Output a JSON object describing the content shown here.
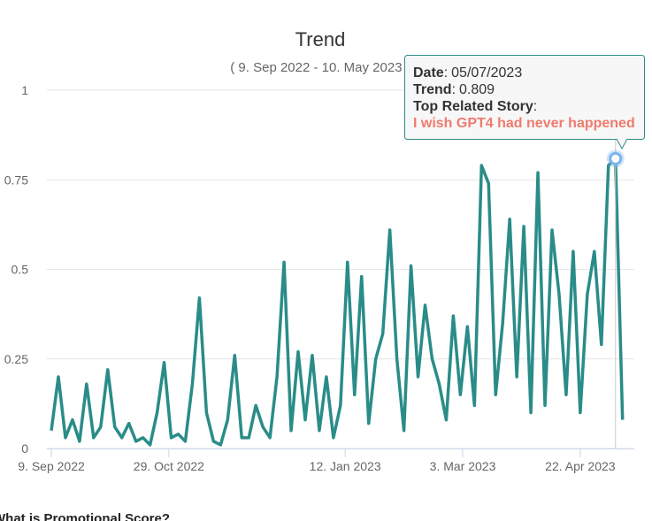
{
  "chart_data": {
    "type": "line",
    "title": "Trend",
    "subtitle": "( 9. Sep 2022 - 10. May 2023 )",
    "x": [
      "2022-09-09",
      "2022-09-12",
      "2022-09-15",
      "2022-09-18",
      "2022-09-21",
      "2022-09-24",
      "2022-09-27",
      "2022-09-30",
      "2022-10-03",
      "2022-10-06",
      "2022-10-09",
      "2022-10-12",
      "2022-10-15",
      "2022-10-18",
      "2022-10-21",
      "2022-10-24",
      "2022-10-27",
      "2022-10-30",
      "2022-11-02",
      "2022-11-05",
      "2022-11-08",
      "2022-11-11",
      "2022-11-14",
      "2022-11-17",
      "2022-11-20",
      "2022-11-23",
      "2022-11-26",
      "2022-11-29",
      "2022-12-02",
      "2022-12-05",
      "2022-12-08",
      "2022-12-11",
      "2022-12-14",
      "2022-12-17",
      "2022-12-20",
      "2022-12-23",
      "2022-12-26",
      "2022-12-29",
      "2023-01-01",
      "2023-01-04",
      "2023-01-07",
      "2023-01-10",
      "2023-01-13",
      "2023-01-16",
      "2023-01-19",
      "2023-01-22",
      "2023-01-25",
      "2023-01-28",
      "2023-01-31",
      "2023-02-03",
      "2023-02-06",
      "2023-02-09",
      "2023-02-12",
      "2023-02-15",
      "2023-02-18",
      "2023-02-21",
      "2023-02-24",
      "2023-02-27",
      "2023-03-02",
      "2023-03-05",
      "2023-03-08",
      "2023-03-11",
      "2023-03-14",
      "2023-03-17",
      "2023-03-20",
      "2023-03-23",
      "2023-03-26",
      "2023-03-29",
      "2023-04-01",
      "2023-04-04",
      "2023-04-07",
      "2023-04-10",
      "2023-04-13",
      "2023-04-16",
      "2023-04-19",
      "2023-04-22",
      "2023-04-25",
      "2023-04-28",
      "2023-05-01",
      "2023-05-04",
      "2023-05-07",
      "2023-05-10"
    ],
    "series": [
      {
        "name": "Trend",
        "color": "#2a8c88",
        "values": [
          0.05,
          0.2,
          0.03,
          0.08,
          0.02,
          0.18,
          0.03,
          0.06,
          0.22,
          0.06,
          0.03,
          0.07,
          0.02,
          0.03,
          0.01,
          0.1,
          0.24,
          0.03,
          0.04,
          0.02,
          0.18,
          0.42,
          0.1,
          0.02,
          0.01,
          0.08,
          0.26,
          0.03,
          0.03,
          0.12,
          0.06,
          0.03,
          0.2,
          0.52,
          0.05,
          0.27,
          0.08,
          0.26,
          0.05,
          0.2,
          0.03,
          0.12,
          0.52,
          0.15,
          0.48,
          0.07,
          0.25,
          0.32,
          0.61,
          0.25,
          0.05,
          0.51,
          0.2,
          0.4,
          0.25,
          0.18,
          0.08,
          0.37,
          0.15,
          0.34,
          0.12,
          0.79,
          0.74,
          0.15,
          0.35,
          0.64,
          0.2,
          0.62,
          0.1,
          0.77,
          0.12,
          0.61,
          0.43,
          0.15,
          0.55,
          0.1,
          0.43,
          0.55,
          0.29,
          0.79,
          0.809,
          0.08
        ]
      }
    ],
    "xlim": [
      "2022-09-07",
      "2023-05-15"
    ],
    "xticks": [
      {
        "value": "2022-09-09",
        "label": "9. Sep 2022"
      },
      {
        "value": "2022-10-29",
        "label": "29. Oct 2022"
      },
      {
        "value": "2023-01-12",
        "label": "12. Jan 2023"
      },
      {
        "value": "2023-03-03",
        "label": "3. Mar 2023"
      },
      {
        "value": "2023-04-22",
        "label": "22. Apr 2023"
      }
    ],
    "ylim": [
      0,
      1
    ],
    "yticks": [
      0,
      0.25,
      0.5,
      0.75,
      1
    ],
    "grid": true,
    "tooltip": {
      "separator": ":",
      "date_label": "Date",
      "date": "05/07/2023",
      "trend_label": "Trend",
      "trend": 0.809,
      "story_label": "Top Related Story",
      "story": "I wish GPT4 had never happened"
    }
  },
  "footer": {
    "heading": "What is Promotional Score?"
  }
}
